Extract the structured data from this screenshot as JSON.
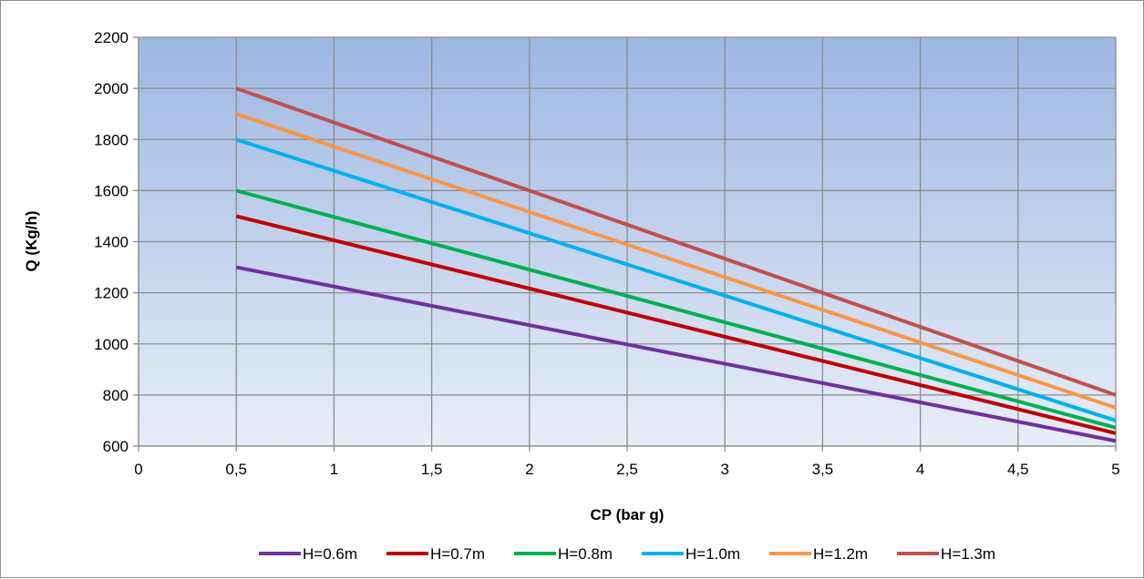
{
  "chart_data": {
    "type": "line",
    "title": "",
    "xlabel": "CP (bar g)",
    "ylabel": "Q (Kg/h)",
    "xlim": [
      0,
      5
    ],
    "ylim": [
      600,
      2200
    ],
    "x_ticks": [
      0,
      0.5,
      1,
      1.5,
      2,
      2.5,
      3,
      3.5,
      4,
      4.5,
      5
    ],
    "x_tick_labels": [
      "0",
      "0,5",
      "1",
      "1,5",
      "2",
      "2,5",
      "3",
      "3,5",
      "4",
      "4,5",
      "5"
    ],
    "y_ticks": [
      600,
      800,
      1000,
      1200,
      1400,
      1600,
      1800,
      2000,
      2200
    ],
    "y_tick_labels": [
      "600",
      "800",
      "1000",
      "1200",
      "1400",
      "1600",
      "1800",
      "2000",
      "2200"
    ],
    "grid": true,
    "legend_position": "bottom",
    "plot_background": [
      "#9db7e2",
      "#e8eef8"
    ],
    "series": [
      {
        "name": "H=0.6m",
        "color": "#7030a0",
        "x": [
          0.5,
          5
        ],
        "values": [
          1300,
          620
        ]
      },
      {
        "name": "H=0.7m",
        "color": "#c00000",
        "x": [
          0.5,
          5
        ],
        "values": [
          1500,
          650
        ]
      },
      {
        "name": "H=0.8m",
        "color": "#00b050",
        "x": [
          0.5,
          5
        ],
        "values": [
          1600,
          672
        ]
      },
      {
        "name": "H=1.0m",
        "color": "#00b0f0",
        "x": [
          0.5,
          5
        ],
        "values": [
          1800,
          700
        ]
      },
      {
        "name": "H=1.2m",
        "color": "#f79646",
        "x": [
          0.5,
          5
        ],
        "values": [
          1900,
          750
        ]
      },
      {
        "name": "H=1.3m",
        "color": "#c0504d",
        "x": [
          0.5,
          5
        ],
        "values": [
          2000,
          800
        ]
      }
    ]
  }
}
